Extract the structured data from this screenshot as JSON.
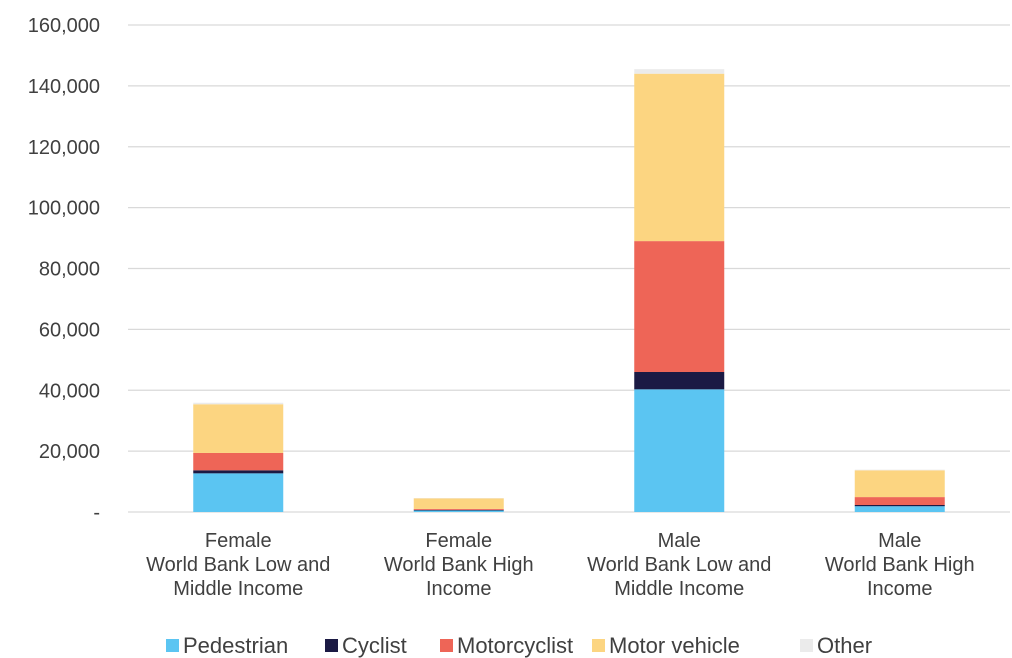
{
  "chart_data": {
    "type": "bar",
    "stacked": true,
    "categories": [
      [
        "Female",
        "World Bank Low and",
        "Middle Income"
      ],
      [
        "Female",
        "World Bank High",
        "Income"
      ],
      [
        "Male",
        "World Bank Low and",
        "Middle Income"
      ],
      [
        "Male",
        "World Bank High",
        "Income"
      ]
    ],
    "series": [
      {
        "name": "Pedestrian",
        "color": "#5BC5F2",
        "values": [
          12700,
          500,
          40300,
          1900
        ]
      },
      {
        "name": "Cyclist",
        "color": "#1B1A44",
        "values": [
          1000,
          200,
          5700,
          400
        ]
      },
      {
        "name": "Motorcyclist",
        "color": "#EE6557",
        "values": [
          5700,
          300,
          43000,
          2600
        ]
      },
      {
        "name": "Motor vehicle",
        "color": "#FCD581",
        "values": [
          16000,
          3500,
          55000,
          8800
        ]
      },
      {
        "name": "Other",
        "color": "#EBEBEB",
        "values": [
          500,
          100,
          1500,
          200
        ]
      }
    ],
    "ylim": [
      0,
      160000
    ],
    "yticks": [
      0,
      20000,
      40000,
      60000,
      80000,
      100000,
      120000,
      140000,
      160000
    ],
    "ytick_labels": [
      "-",
      "20,000",
      "40,000",
      "60,000",
      "80,000",
      "100,000",
      "120,000",
      "140,000",
      "160,000"
    ],
    "grid": true,
    "legend_position": "bottom",
    "title": "",
    "xlabel": "",
    "ylabel": ""
  }
}
